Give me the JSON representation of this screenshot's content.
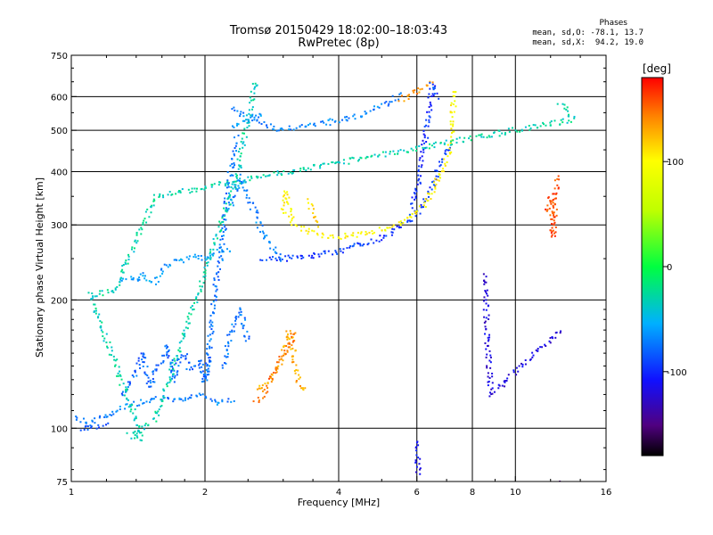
{
  "title_line1": "Tromsø 20150429 18:02:00–18:03:43",
  "title_line2": "RwPretec (8p)",
  "stats": {
    "title": "Phases",
    "o_line": "mean, sd,O: -78.1, 13.7",
    "x_line": "mean, sd,X:  94.2, 19.0"
  },
  "colorbar": {
    "label": "[deg]",
    "ticks": [
      {
        "value": 100,
        "label": "100"
      },
      {
        "value": 0,
        "label": "0"
      },
      {
        "value": -100,
        "label": "-100"
      }
    ],
    "range": [
      -180,
      180
    ]
  },
  "chart_data": {
    "type": "scatter",
    "title": "Tromsø 20150429 18:02:00–18:03:43",
    "subtitle": "RwPretec (8p)",
    "xlabel": "Frequency [MHz]",
    "ylabel": "Stationary phase Virtual Height [km]",
    "x_scale": "log",
    "y_scale": "log",
    "xlim": [
      1,
      16
    ],
    "ylim": [
      75,
      750
    ],
    "x_ticks": [
      {
        "v": 1,
        "l": "1"
      },
      {
        "v": 2,
        "l": "2"
      },
      {
        "v": 4,
        "l": "4"
      },
      {
        "v": 6,
        "l": "6"
      },
      {
        "v": 8,
        "l": "8"
      },
      {
        "v": 10,
        "l": "10"
      },
      {
        "v": 16,
        "l": "16"
      }
    ],
    "y_ticks": [
      {
        "v": 75,
        "l": "75"
      },
      {
        "v": 100,
        "l": "100"
      },
      {
        "v": 200,
        "l": "200"
      },
      {
        "v": 300,
        "l": "300"
      },
      {
        "v": 400,
        "l": "400"
      },
      {
        "v": 500,
        "l": "500"
      },
      {
        "v": 600,
        "l": "600"
      },
      {
        "v": 750,
        "l": "750"
      }
    ],
    "x_gridlines": [
      2,
      4,
      6,
      8,
      10
    ],
    "y_gridlines": [
      100,
      200,
      300,
      400,
      500,
      600
    ],
    "grid": true,
    "color_variable": "phase [deg]",
    "traces": [
      {
        "phase": -70,
        "points": [
          [
            1.02,
            106
          ],
          [
            1.1,
            103
          ],
          [
            1.2,
            107
          ],
          [
            1.3,
            112
          ],
          [
            1.4,
            114
          ],
          [
            1.5,
            116
          ],
          [
            1.6,
            118
          ],
          [
            1.7,
            116
          ],
          [
            1.8,
            117
          ],
          [
            1.9,
            120
          ],
          [
            2.0,
            120
          ],
          [
            2.1,
            115
          ],
          [
            2.2,
            116
          ],
          [
            2.3,
            117
          ]
        ]
      },
      {
        "phase": -85,
        "points": [
          [
            1.05,
            100
          ],
          [
            1.1,
            100
          ],
          [
            1.15,
            101
          ],
          [
            1.2,
            102
          ]
        ]
      },
      {
        "phase": -80,
        "points": [
          [
            1.3,
            120
          ],
          [
            1.4,
            135
          ],
          [
            1.45,
            150
          ],
          [
            1.5,
            125
          ],
          [
            1.55,
            138
          ],
          [
            1.6,
            145
          ],
          [
            1.65,
            155
          ],
          [
            1.7,
            130
          ],
          [
            1.75,
            145
          ],
          [
            1.8,
            150
          ],
          [
            1.85,
            138
          ],
          [
            1.9,
            140
          ],
          [
            1.95,
            145
          ],
          [
            2.0,
            128
          ],
          [
            2.05,
            148
          ]
        ]
      },
      {
        "phase": -60,
        "points": [
          [
            1.3,
            220
          ],
          [
            1.35,
            225
          ],
          [
            1.4,
            223
          ],
          [
            1.45,
            230
          ],
          [
            1.5,
            222
          ],
          [
            1.55,
            220
          ],
          [
            1.6,
            235
          ],
          [
            1.7,
            245
          ],
          [
            1.8,
            248
          ],
          [
            1.9,
            252
          ],
          [
            2.0,
            250
          ],
          [
            2.1,
            258
          ],
          [
            2.2,
            262
          ],
          [
            2.3,
            260
          ]
        ]
      },
      {
        "phase": -75,
        "points": [
          [
            2.02,
            130
          ],
          [
            2.04,
            150
          ],
          [
            2.06,
            165
          ],
          [
            2.08,
            185
          ],
          [
            2.1,
            205
          ],
          [
            2.12,
            220
          ],
          [
            2.15,
            240
          ],
          [
            2.18,
            262
          ],
          [
            2.2,
            285
          ],
          [
            2.22,
            310
          ],
          [
            2.24,
            340
          ],
          [
            2.26,
            370
          ],
          [
            2.28,
            395
          ],
          [
            2.3,
            420
          ],
          [
            2.32,
            445
          ],
          [
            2.34,
            470
          ],
          [
            2.36,
            480
          ]
        ]
      },
      {
        "phase": -70,
        "points": [
          [
            2.3,
            330
          ],
          [
            2.35,
            360
          ],
          [
            2.4,
            390
          ],
          [
            2.45,
            370
          ],
          [
            2.5,
            350
          ],
          [
            2.55,
            330
          ],
          [
            2.6,
            320
          ],
          [
            2.65,
            300
          ],
          [
            2.7,
            290
          ],
          [
            2.75,
            280
          ],
          [
            2.8,
            270
          ],
          [
            2.85,
            262
          ],
          [
            2.9,
            255
          ],
          [
            3.0,
            250
          ]
        ]
      },
      {
        "phase": -75,
        "points": [
          [
            2.2,
            140
          ],
          [
            2.25,
            155
          ],
          [
            2.3,
            170
          ],
          [
            2.35,
            180
          ],
          [
            2.4,
            190
          ],
          [
            2.45,
            175
          ],
          [
            2.5,
            160
          ]
        ]
      },
      {
        "phase": -95,
        "points": [
          [
            2.7,
            250
          ],
          [
            3.0,
            250
          ],
          [
            3.3,
            252
          ],
          [
            3.6,
            255
          ],
          [
            4.0,
            260
          ],
          [
            4.4,
            268
          ],
          [
            4.8,
            275
          ],
          [
            5.2,
            285
          ],
          [
            5.6,
            300
          ],
          [
            6.0,
            320
          ],
          [
            6.3,
            345
          ],
          [
            6.6,
            385
          ],
          [
            6.9,
            430
          ],
          [
            7.1,
            460
          ]
        ]
      },
      {
        "phase": -100,
        "points": [
          [
            5.8,
            330
          ],
          [
            6.0,
            360
          ],
          [
            6.1,
            400
          ],
          [
            6.2,
            450
          ],
          [
            6.3,
            500
          ],
          [
            6.4,
            560
          ],
          [
            6.5,
            620
          ],
          [
            6.6,
            640
          ]
        ]
      },
      {
        "phase": -70,
        "points": [
          [
            2.3,
            560
          ],
          [
            2.4,
            550
          ],
          [
            2.5,
            540
          ],
          [
            2.6,
            530
          ],
          [
            2.7,
            520
          ],
          [
            2.8,
            510
          ],
          [
            2.9,
            505
          ],
          [
            3.0,
            505
          ],
          [
            3.2,
            508
          ],
          [
            3.5,
            515
          ],
          [
            3.8,
            522
          ],
          [
            4.1,
            530
          ],
          [
            4.4,
            540
          ],
          [
            4.8,
            560
          ],
          [
            5.2,
            585
          ],
          [
            5.5,
            605
          ]
        ]
      },
      {
        "phase": -65,
        "points": [
          [
            2.3,
            515
          ],
          [
            2.5,
            525
          ],
          [
            2.6,
            535
          ],
          [
            2.7,
            545
          ]
        ]
      },
      {
        "phase": 100,
        "points": [
          [
            3.0,
            320
          ],
          [
            3.05,
            360
          ],
          [
            3.1,
            330
          ],
          [
            3.15,
            305
          ],
          [
            3.2,
            300
          ],
          [
            3.3,
            295
          ],
          [
            3.4,
            290
          ],
          [
            3.6,
            285
          ],
          [
            3.8,
            283
          ],
          [
            4.0,
            282
          ],
          [
            4.4,
            285
          ],
          [
            4.8,
            290
          ],
          [
            5.2,
            296
          ],
          [
            5.6,
            305
          ],
          [
            6.0,
            320
          ],
          [
            6.3,
            340
          ],
          [
            6.6,
            370
          ],
          [
            6.9,
            410
          ],
          [
            7.1,
            450
          ],
          [
            7.2,
            500
          ],
          [
            7.25,
            560
          ],
          [
            7.3,
            620
          ]
        ]
      },
      {
        "phase": 115,
        "points": [
          [
            3.4,
            340
          ],
          [
            3.5,
            320
          ],
          [
            3.6,
            300
          ]
        ]
      },
      {
        "phase": 130,
        "points": [
          [
            2.6,
            123
          ],
          [
            2.7,
            125
          ],
          [
            2.8,
            130
          ],
          [
            2.9,
            138
          ],
          [
            3.0,
            148
          ],
          [
            3.05,
            160
          ],
          [
            3.1,
            170
          ],
          [
            3.15,
            155
          ],
          [
            3.2,
            140
          ],
          [
            3.25,
            128
          ],
          [
            3.3,
            124
          ],
          [
            3.4,
            123
          ]
        ]
      },
      {
        "phase": 150,
        "points": [
          [
            2.6,
            115
          ],
          [
            2.65,
            118
          ],
          [
            2.7,
            120
          ],
          [
            3.2,
            168
          ]
        ]
      },
      {
        "phase": 140,
        "points": [
          [
            5.5,
            590
          ],
          [
            5.7,
            600
          ],
          [
            5.9,
            612
          ],
          [
            6.1,
            625
          ],
          [
            6.3,
            640
          ],
          [
            6.5,
            650
          ]
        ]
      },
      {
        "phase": -90,
        "points": [
          [
            6.5,
            645
          ],
          [
            6.6,
            620
          ],
          [
            6.7,
            600
          ]
        ]
      },
      {
        "phase": -110,
        "points": [
          [
            6.0,
            93
          ],
          [
            6.05,
            78
          ]
        ]
      },
      {
        "phase": -120,
        "points": [
          [
            8.5,
            230
          ],
          [
            8.8,
            120
          ],
          [
            12.6,
            170
          ]
        ]
      },
      {
        "phase": -150,
        "points": [
          [
            12.7,
            76
          ]
        ]
      },
      {
        "phase": 160,
        "points": [
          [
            11.8,
            320
          ],
          [
            12.0,
            350
          ],
          [
            12.2,
            280
          ],
          [
            12.4,
            385
          ],
          [
            12.5,
            380
          ]
        ]
      },
      {
        "phase": -30,
        "points": [
          [
            12.6,
            580
          ],
          [
            13.5,
            530
          ],
          [
            1.55,
            350
          ],
          [
            1.25,
            210
          ],
          [
            1.1,
            205
          ],
          [
            1.45,
            95
          ],
          [
            1.35,
            96
          ],
          [
            1.55,
            105
          ],
          [
            2.35,
            385
          ],
          [
            2.6,
            650
          ]
        ]
      }
    ]
  }
}
